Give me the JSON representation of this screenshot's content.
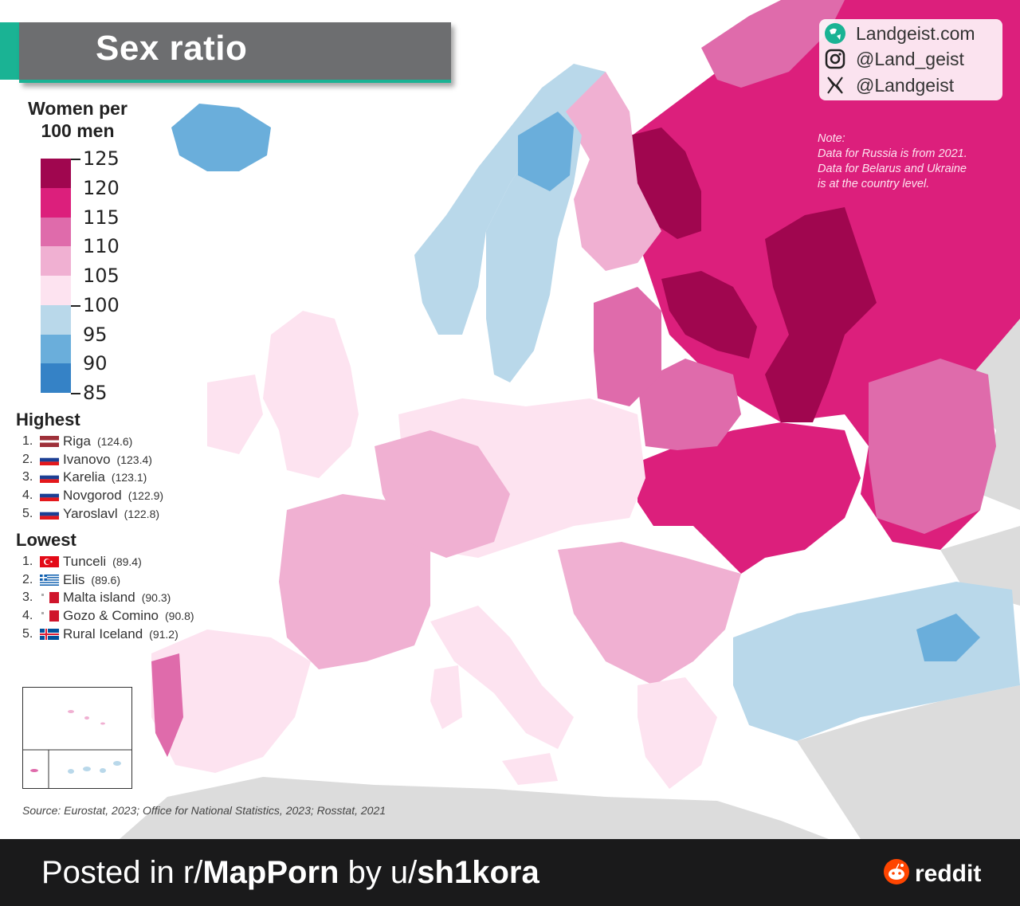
{
  "title": "Sex ratio",
  "social": {
    "website": "Landgeist.com",
    "instagram": "@Land_geist",
    "x": "@Landgeist"
  },
  "note": {
    "line1": "Note:",
    "line2": "Data for Russia is from 2021.",
    "line3": "Data for Belarus and Ukraine",
    "line4": "is at the country level."
  },
  "legend": {
    "title_line1": "Women per",
    "title_line2": "100 men",
    "ticks": [
      "125",
      "120",
      "115",
      "110",
      "105",
      "100",
      "95",
      "90",
      "85"
    ],
    "colors": [
      "#a0064f",
      "#dc1f7c",
      "#df6bab",
      "#f0b0d2",
      "#fde3f0",
      "#b9d8ea",
      "#6aaedb",
      "#3582c6"
    ]
  },
  "highest": {
    "heading": "Highest",
    "items": [
      {
        "rank": "1.",
        "name": "Riga",
        "value": "(124.6)",
        "flag": "latvia-flag"
      },
      {
        "rank": "2.",
        "name": "Ivanovo",
        "value": "(123.4)",
        "flag": "russia-flag"
      },
      {
        "rank": "3.",
        "name": "Karelia",
        "value": "(123.1)",
        "flag": "russia-flag"
      },
      {
        "rank": "4.",
        "name": "Novgorod",
        "value": "(122.9)",
        "flag": "russia-flag"
      },
      {
        "rank": "5.",
        "name": "Yaroslavl",
        "value": "(122.8)",
        "flag": "russia-flag"
      }
    ]
  },
  "lowest": {
    "heading": "Lowest",
    "items": [
      {
        "rank": "1.",
        "name": "Tunceli",
        "value": "(89.4)",
        "flag": "turkey-flag"
      },
      {
        "rank": "2.",
        "name": "Elis",
        "value": "(89.6)",
        "flag": "greece-flag"
      },
      {
        "rank": "3.",
        "name": "Malta island",
        "value": "(90.3)",
        "flag": "malta-flag"
      },
      {
        "rank": "4.",
        "name": "Gozo & Comino",
        "value": "(90.8)",
        "flag": "malta-flag"
      },
      {
        "rank": "5.",
        "name": "Rural Iceland",
        "value": "(91.2)",
        "flag": "iceland-flag"
      }
    ]
  },
  "source": "Source: Eurostat, 2023; Office for National Statistics, 2023; Rosstat, 2021",
  "footer": {
    "posted_in": "Posted in r/",
    "subreddit": "MapPorn",
    "by": " by u/",
    "user": "sh1kora",
    "brand": "reddit"
  }
}
